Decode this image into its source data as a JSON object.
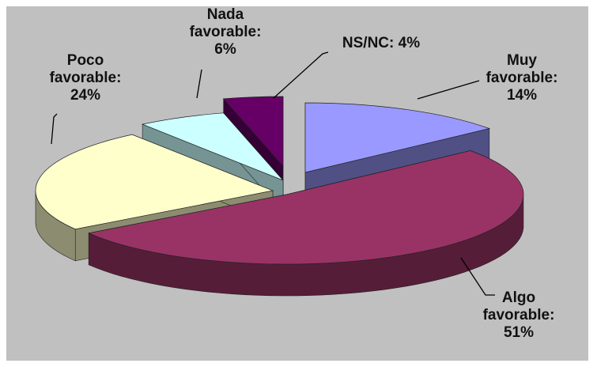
{
  "chart_data": {
    "type": "pie",
    "style": "3d-exploded",
    "background": "#c0c0c0",
    "slices": [
      {
        "label": "Muy favorable",
        "value": 14,
        "label_lines": [
          "Muy",
          "favorable:",
          "14%"
        ],
        "color": "#9999ff"
      },
      {
        "label": "Algo favorable",
        "value": 51,
        "label_lines": [
          "Algo",
          "favorable:",
          "51%"
        ],
        "color": "#993366"
      },
      {
        "label": "Poco favorable",
        "value": 24,
        "label_lines": [
          "Poco",
          "favorable:",
          "24%"
        ],
        "color": "#ffffcc"
      },
      {
        "label": "Nada favorable",
        "value": 6,
        "label_lines": [
          "Nada",
          "favorable:",
          "6%"
        ],
        "color": "#ccffff"
      },
      {
        "label": "NS/NC",
        "value": 4,
        "label_lines": [
          "NS/NC: 4%"
        ],
        "color": "#660066"
      }
    ]
  }
}
